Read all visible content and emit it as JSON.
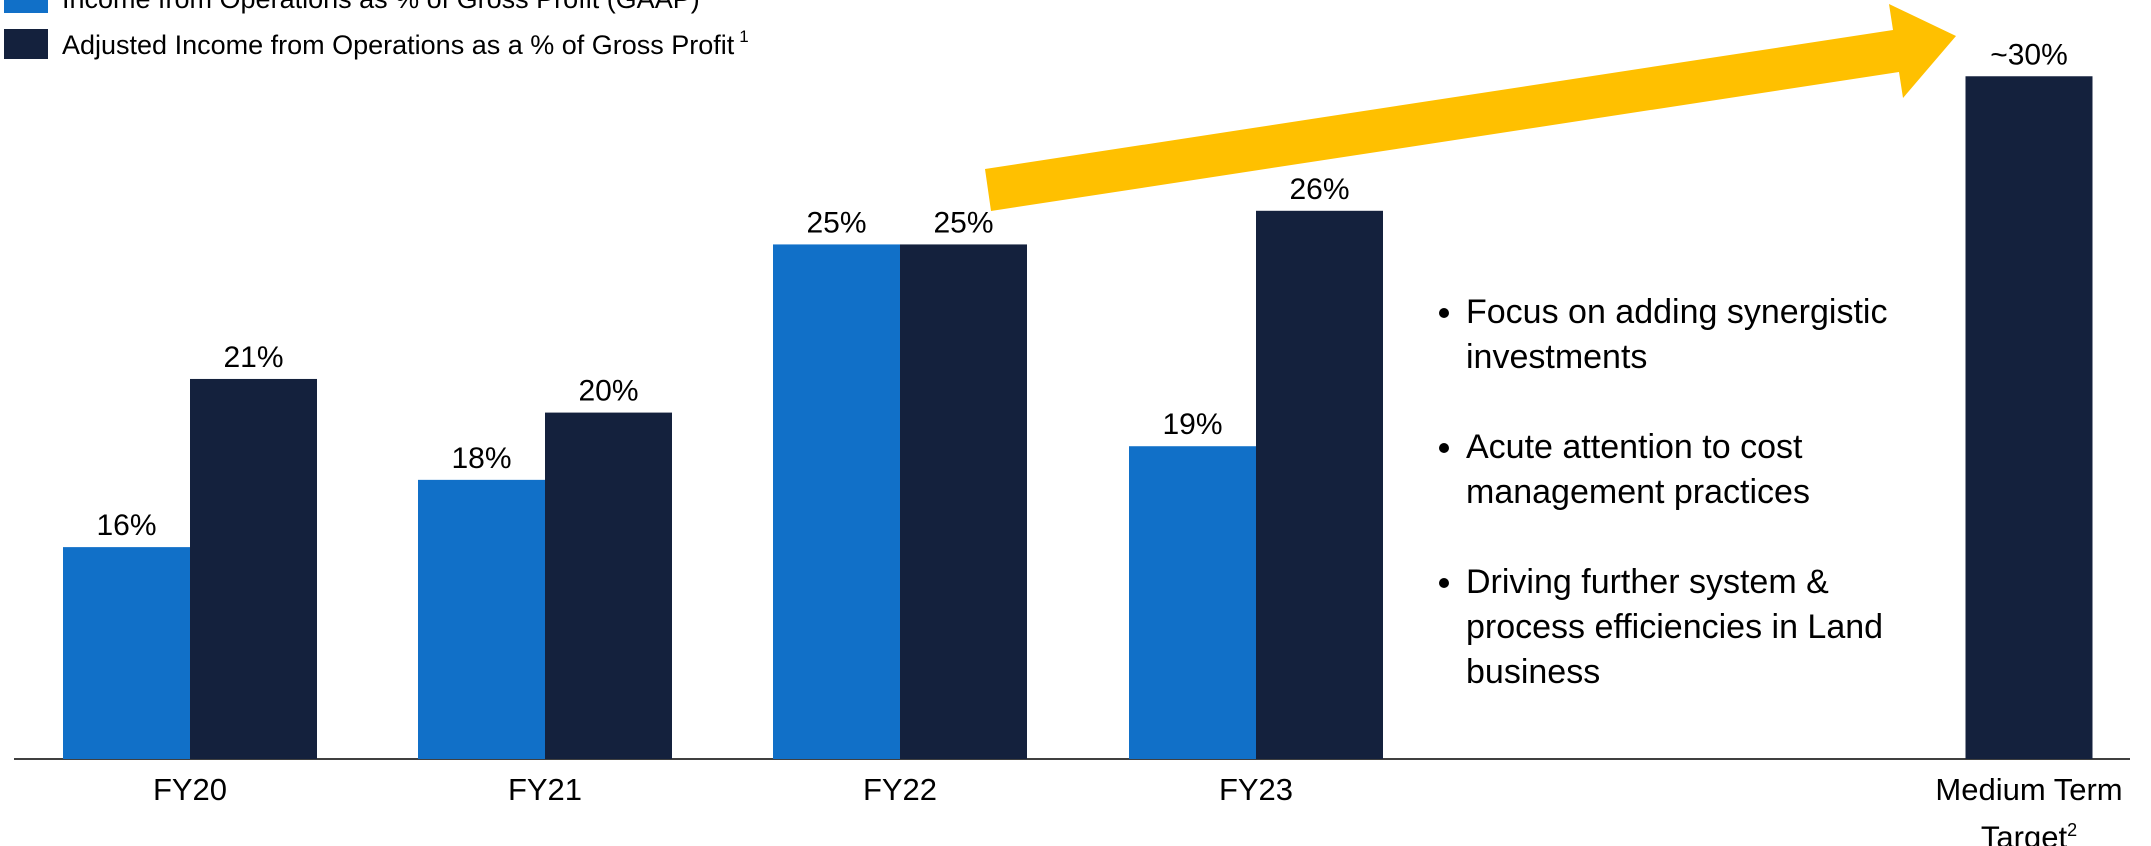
{
  "chart_data": {
    "type": "bar",
    "categories": [
      "FY20",
      "FY21",
      "FY22",
      "FY23",
      "Medium Term Target"
    ],
    "category_footnotes": [
      null,
      null,
      null,
      null,
      "2"
    ],
    "series": [
      {
        "name": "Income from Operations as % of Gross Profit (GAAP)",
        "color": "#1170c8",
        "values": [
          16,
          18,
          25,
          19,
          null
        ],
        "value_labels": [
          "16%",
          "18%",
          "25%",
          "19%",
          null
        ]
      },
      {
        "name": "Adjusted Income from Operations as a % of Gross Profit",
        "footnote": "1",
        "color": "#14213d",
        "values": [
          21,
          20,
          25,
          26,
          30
        ],
        "value_labels": [
          "21%",
          "20%",
          "25%",
          "26%",
          "~30%"
        ]
      }
    ],
    "ylim": [
      9.7,
      32
    ],
    "annotations": [
      "Focus on adding synergistic investments",
      "Acute attention to cost management practices",
      "Driving further system & process efficiencies in Land business"
    ]
  }
}
